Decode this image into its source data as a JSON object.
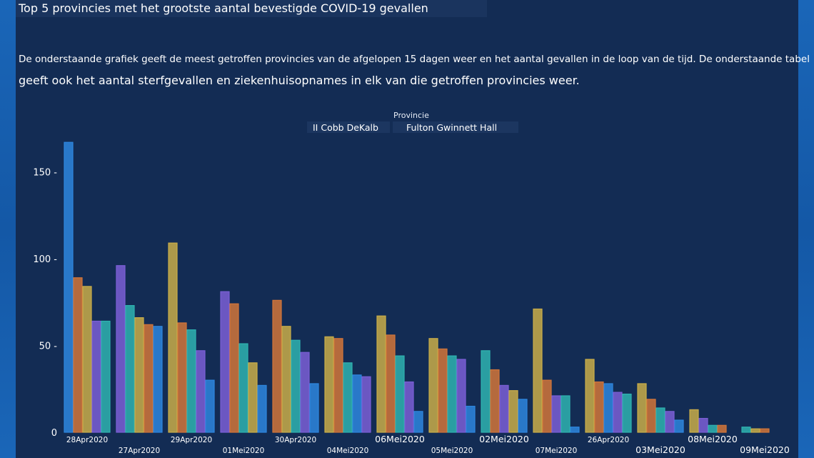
{
  "title": "Top 5 provincies met het grootste aantal bevestigde COVID-19 gevallen",
  "description_line1": "De onderstaande grafiek geeft de meest getroffen provincies van de afgelopen 15 dagen weer en het aantal gevallen in de loop van de tijd. De onderstaande tabel",
  "description_line2": "geeft ook het aantal sterfgevallen en ziekenhuisopnames in elk van die getroffen provincies weer.",
  "legend": {
    "title": "Provincie",
    "group1": "II Cobb DeKalb",
    "group2": "Fulton Gwinnett Hall"
  },
  "colors": {
    "blue": "#2e86de",
    "orange": "#d2763a",
    "yellow": "#c9ad49",
    "purple": "#7b5fd6",
    "teal": "#2fb3b0"
  },
  "chart_data": {
    "type": "bar",
    "title": "",
    "xlabel": "",
    "ylabel": "",
    "ylim": [
      0,
      170
    ],
    "yticks": [
      0,
      50,
      100,
      150
    ],
    "grid": false,
    "legend_placement": "top-center",
    "categories": [
      {
        "label": "28Apr2020",
        "row": 1,
        "size": "small",
        "bars": [
          {
            "c": "blue",
            "v": 167
          },
          {
            "c": "orange",
            "v": 89
          },
          {
            "c": "yellow",
            "v": 84
          },
          {
            "c": "purple",
            "v": 64
          },
          {
            "c": "teal",
            "v": 64
          }
        ]
      },
      {
        "label": "27Apr2020",
        "row": 2,
        "size": "small",
        "bars": [
          {
            "c": "purple",
            "v": 96
          },
          {
            "c": "teal",
            "v": 73
          },
          {
            "c": "yellow",
            "v": 66
          },
          {
            "c": "orange",
            "v": 62
          },
          {
            "c": "blue",
            "v": 61
          }
        ]
      },
      {
        "label": "29Apr2020",
        "row": 1,
        "size": "small",
        "bars": [
          {
            "c": "yellow",
            "v": 109
          },
          {
            "c": "orange",
            "v": 63
          },
          {
            "c": "teal",
            "v": 59
          },
          {
            "c": "purple",
            "v": 47
          },
          {
            "c": "blue",
            "v": 30
          }
        ]
      },
      {
        "label": "01Mei2020",
        "row": 2,
        "size": "small",
        "bars": [
          {
            "c": "purple",
            "v": 81
          },
          {
            "c": "orange",
            "v": 74
          },
          {
            "c": "teal",
            "v": 51
          },
          {
            "c": "yellow",
            "v": 40
          },
          {
            "c": "blue",
            "v": 27
          }
        ]
      },
      {
        "label": "30Apr2020",
        "row": 1,
        "size": "small",
        "bars": [
          {
            "c": "orange",
            "v": 76
          },
          {
            "c": "yellow",
            "v": 61
          },
          {
            "c": "teal",
            "v": 53
          },
          {
            "c": "purple",
            "v": 46
          },
          {
            "c": "blue",
            "v": 28
          }
        ]
      },
      {
        "label": "04Mei2020",
        "row": 2,
        "size": "small",
        "bars": [
          {
            "c": "yellow",
            "v": 55
          },
          {
            "c": "orange",
            "v": 54
          },
          {
            "c": "teal",
            "v": 40
          },
          {
            "c": "blue",
            "v": 33
          },
          {
            "c": "purple",
            "v": 32
          }
        ]
      },
      {
        "label": "06Mei2020",
        "row": 1,
        "size": "big",
        "bars": [
          {
            "c": "yellow",
            "v": 67
          },
          {
            "c": "orange",
            "v": 56
          },
          {
            "c": "teal",
            "v": 44
          },
          {
            "c": "purple",
            "v": 29
          },
          {
            "c": "blue",
            "v": 12
          }
        ]
      },
      {
        "label": "05Mei2020",
        "row": 2,
        "size": "small",
        "bars": [
          {
            "c": "yellow",
            "v": 54
          },
          {
            "c": "orange",
            "v": 48
          },
          {
            "c": "teal",
            "v": 44
          },
          {
            "c": "purple",
            "v": 42
          },
          {
            "c": "blue",
            "v": 15
          }
        ]
      },
      {
        "label": "02Mei2020",
        "row": 1,
        "size": "big",
        "bars": [
          {
            "c": "teal",
            "v": 47
          },
          {
            "c": "orange",
            "v": 36
          },
          {
            "c": "purple",
            "v": 27
          },
          {
            "c": "yellow",
            "v": 24
          },
          {
            "c": "blue",
            "v": 19
          }
        ]
      },
      {
        "label": "07Mei2020",
        "row": 2,
        "size": "tiny",
        "bars": [
          {
            "c": "yellow",
            "v": 71
          },
          {
            "c": "orange",
            "v": 30
          },
          {
            "c": "purple",
            "v": 21
          },
          {
            "c": "teal",
            "v": 21
          },
          {
            "c": "blue",
            "v": 3
          }
        ]
      },
      {
        "label": "26Apr2020",
        "row": 1,
        "size": "small",
        "bars": [
          {
            "c": "yellow",
            "v": 42
          },
          {
            "c": "orange",
            "v": 29
          },
          {
            "c": "blue",
            "v": 28
          },
          {
            "c": "purple",
            "v": 23
          },
          {
            "c": "teal",
            "v": 22
          }
        ]
      },
      {
        "label": "03Mei2020",
        "row": 2,
        "size": "big",
        "bars": [
          {
            "c": "yellow",
            "v": 28
          },
          {
            "c": "orange",
            "v": 19
          },
          {
            "c": "teal",
            "v": 14
          },
          {
            "c": "purple",
            "v": 12
          },
          {
            "c": "blue",
            "v": 7
          }
        ]
      },
      {
        "label": "08Mei2020",
        "row": 1,
        "size": "big",
        "bars": [
          {
            "c": "yellow",
            "v": 13
          },
          {
            "c": "purple",
            "v": 8
          },
          {
            "c": "teal",
            "v": 4
          },
          {
            "c": "orange",
            "v": 4
          }
        ]
      },
      {
        "label": "09Mei2020",
        "row": 2,
        "size": "big",
        "bars": [
          {
            "c": "teal",
            "v": 3
          },
          {
            "c": "yellow",
            "v": 2
          },
          {
            "c": "orange",
            "v": 2
          }
        ]
      }
    ]
  }
}
